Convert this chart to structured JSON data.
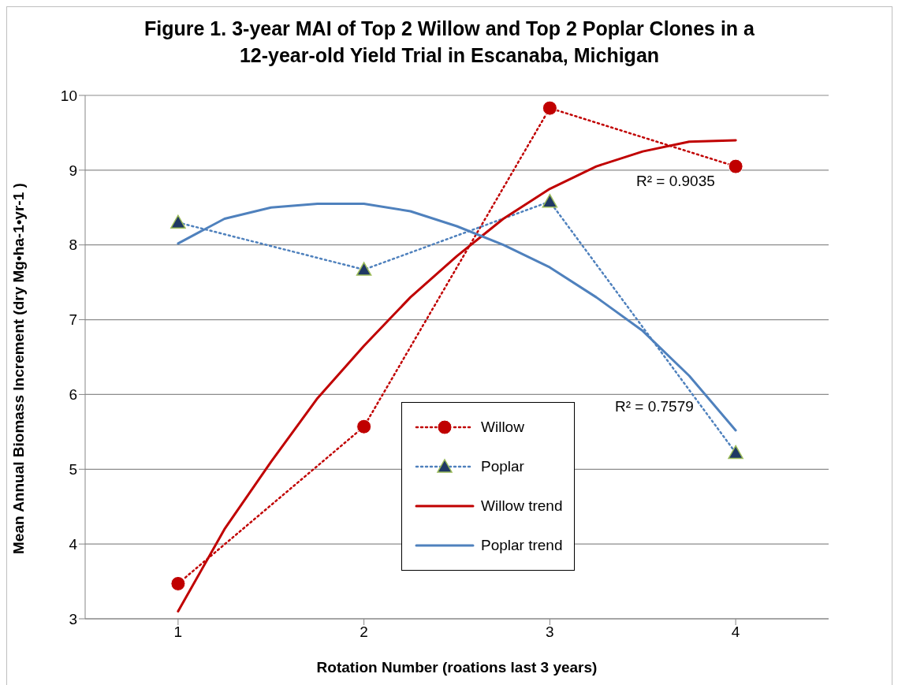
{
  "chart_data": {
    "type": "line",
    "title": "Figure 1. 3-year MAI of Top 2 Willow and Top 2 Poplar Clones in a\n12-year-old Yield Trial in Escanaba, Michigan",
    "xlabel": "Rotation Number (roations last 3 years)",
    "ylabel": "Mean Annual Biomass Increment (dry Mg•ha-1•yr-1  )",
    "series": [
      {
        "name": "Willow",
        "color": "#c00000",
        "x": [
          1,
          2,
          3,
          4
        ],
        "values": [
          3.47,
          5.57,
          9.83,
          9.05
        ],
        "marker": "circle",
        "line_style": "dotted"
      },
      {
        "name": "Poplar",
        "color": "#4f81bd",
        "x": [
          1,
          2,
          3,
          4
        ],
        "values": [
          8.3,
          7.67,
          8.58,
          5.22
        ],
        "marker": "triangle",
        "line_style": "dotted"
      },
      {
        "name": "Willow trend",
        "color": "#c00000",
        "x": [
          1,
          1.25,
          1.5,
          1.75,
          2,
          2.25,
          2.5,
          2.75,
          3,
          3.25,
          3.5,
          3.75,
          4
        ],
        "values": [
          3.1,
          4.2,
          5.1,
          5.95,
          6.65,
          7.3,
          7.85,
          8.35,
          8.75,
          9.05,
          9.25,
          9.38,
          9.4
        ],
        "marker": "none",
        "line_style": "solid"
      },
      {
        "name": "Poplar trend",
        "color": "#4f81bd",
        "x": [
          1,
          1.25,
          1.5,
          1.75,
          2,
          2.25,
          2.5,
          2.75,
          3,
          3.25,
          3.5,
          3.75,
          4
        ],
        "values": [
          8.02,
          8.35,
          8.5,
          8.55,
          8.55,
          8.45,
          8.25,
          8.0,
          7.7,
          7.3,
          6.85,
          6.25,
          5.52
        ],
        "marker": "none",
        "line_style": "solid"
      }
    ],
    "annotations": [
      "R² = 0.9035",
      "R² = 0.7579"
    ],
    "xlim": [
      0.5,
      4.5
    ],
    "xticks": [
      1,
      2,
      3,
      4
    ],
    "ylim": [
      3,
      10
    ],
    "yticks": [
      3,
      4,
      5,
      6,
      7,
      8,
      9,
      10
    ],
    "grid": "y",
    "legend": "bottom"
  }
}
